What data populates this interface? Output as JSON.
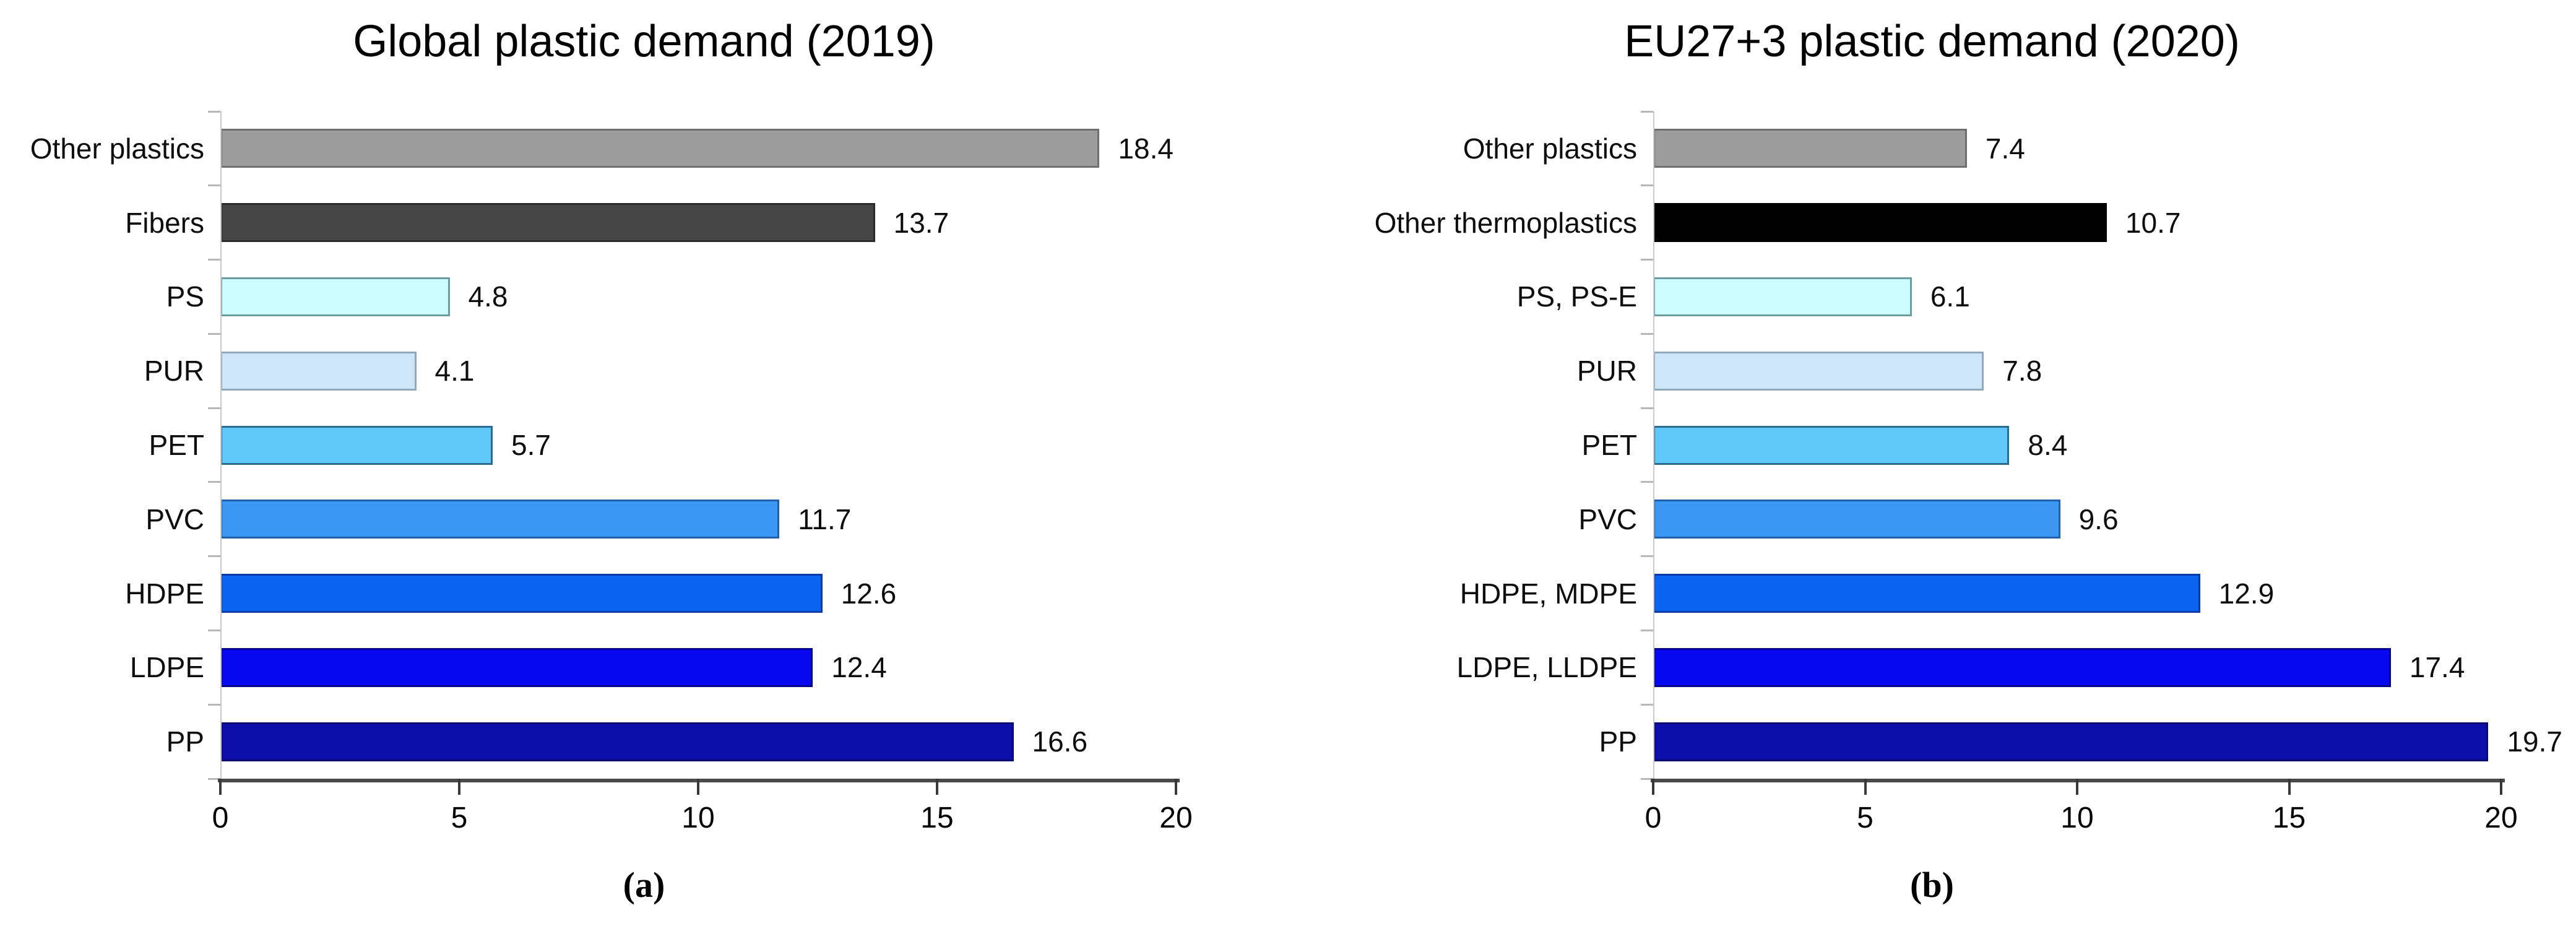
{
  "figure": {
    "background": "#ffffff",
    "style": {
      "x_axis_line_color": "#4a4a4a",
      "x_tick_color": "#383838",
      "y_axis_line_color": "#c9c9c9",
      "y_boundary_tick_color": "#b8b8b8",
      "text_color": "#0d0d0d"
    }
  },
  "chart_data": [
    {
      "type": "bar",
      "orientation": "horizontal",
      "title": "Global plastic demand (2019)",
      "caption": "(a)",
      "categories_top_to_bottom": [
        "Other plastics",
        "Fibers",
        "PS",
        "PUR",
        "PET",
        "PVC",
        "HDPE",
        "LDPE",
        "PP"
      ],
      "values": [
        18.4,
        13.7,
        4.8,
        4.1,
        5.7,
        11.7,
        12.6,
        12.4,
        16.6
      ],
      "value_labels": [
        "18.4",
        "13.7",
        "4.8",
        "4.1",
        "5.7",
        "11.7",
        "12.6",
        "12.4",
        "16.6"
      ],
      "bar_colors": [
        "#9c9c9c",
        "#454545",
        "#ccfcff",
        "#cfe6f8",
        "#5fc8f8",
        "#3b97f2",
        "#0a64f0",
        "#0707f0",
        "#0e0eaa"
      ],
      "bar_border_colors": [
        "#6f6f6f",
        "#2b2b2b",
        "#6b9ba3",
        "#8fa8bc",
        "#2b6b8f",
        "#1f5fae",
        "#0a3ba8",
        "#05058a",
        "#0a0a70"
      ],
      "xlabel": "",
      "ylabel": "",
      "xlim": [
        0,
        20
      ],
      "x_ticks": [
        "0",
        "5",
        "10",
        "15",
        "20"
      ],
      "grid": false,
      "value_labels_shown": true,
      "legend": "none"
    },
    {
      "type": "bar",
      "orientation": "horizontal",
      "title": "EU27+3 plastic demand (2020)",
      "caption": "(b)",
      "categories_top_to_bottom": [
        "Other plastics",
        "Other thermoplastics",
        "PS, PS-E",
        "PUR",
        "PET",
        "PVC",
        "HDPE, MDPE",
        "LDPE, LLDPE",
        "PP"
      ],
      "values": [
        7.4,
        10.7,
        6.1,
        7.8,
        8.4,
        9.6,
        12.9,
        17.4,
        19.7
      ],
      "value_labels": [
        "7.4",
        "10.7",
        "6.1",
        "7.8",
        "8.4",
        "9.6",
        "12.9",
        "17.4",
        "19.7"
      ],
      "bar_colors": [
        "#9c9c9c",
        "#000000",
        "#ccfcff",
        "#cfe6f8",
        "#5fc8f8",
        "#3b97f2",
        "#0a64f0",
        "#0707f0",
        "#0e0eaa"
      ],
      "bar_border_colors": [
        "#6f6f6f",
        "#000000",
        "#6b9ba3",
        "#8fa8bc",
        "#2b6b8f",
        "#1f5fae",
        "#0a3ba8",
        "#05058a",
        "#0a0a70"
      ],
      "xlabel": "",
      "ylabel": "",
      "xlim": [
        0,
        20
      ],
      "x_ticks": [
        "0",
        "5",
        "10",
        "15",
        "20"
      ],
      "grid": false,
      "value_labels_shown": true,
      "legend": "none"
    }
  ]
}
